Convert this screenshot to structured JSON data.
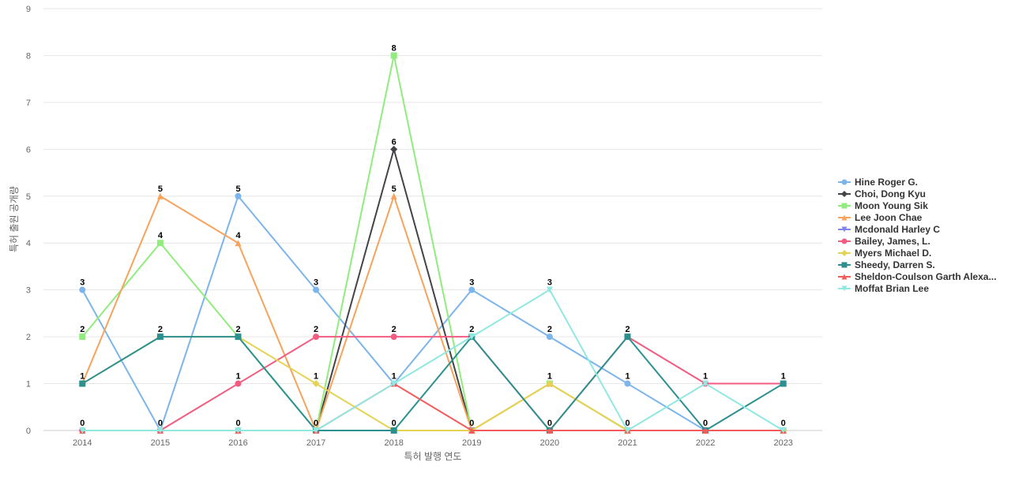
{
  "chart_data": {
    "type": "line",
    "title": "",
    "xlabel": "특허 발행 연도",
    "ylabel": "특허 출원 공개량",
    "ylim": [
      0,
      9
    ],
    "grid": true,
    "legend_position": "right",
    "categories": [
      "2014",
      "2015",
      "2016",
      "2017",
      "2018",
      "2019",
      "2020",
      "2021",
      "2022",
      "2023"
    ],
    "series": [
      {
        "name": "Hine Roger G.",
        "color": "#7cb5ec",
        "marker": "circle",
        "values": [
          3,
          0,
          5,
          3,
          1,
          3,
          2,
          1,
          0,
          0
        ]
      },
      {
        "name": "Choi, Dong Kyu",
        "color": "#434348",
        "marker": "diamond",
        "values": [
          0,
          0,
          0,
          0,
          6,
          0,
          0,
          0,
          0,
          0
        ]
      },
      {
        "name": "Moon Young Sik",
        "color": "#90ed7d",
        "marker": "square",
        "values": [
          2,
          4,
          2,
          0,
          8,
          0,
          1,
          0,
          0,
          0
        ]
      },
      {
        "name": "Lee Joon Chae",
        "color": "#f7a35c",
        "marker": "triangle",
        "values": [
          1,
          5,
          4,
          0,
          5,
          0,
          1,
          0,
          0,
          0
        ]
      },
      {
        "name": "Mcdonald Harley C",
        "color": "#8085e9",
        "marker": "triangle-down",
        "values": [
          0,
          0,
          0,
          0,
          0,
          0,
          0,
          0,
          0,
          0
        ]
      },
      {
        "name": "Bailey, James, L.",
        "color": "#f15c80",
        "marker": "circle",
        "values": [
          0,
          0,
          1,
          2,
          2,
          2,
          0,
          2,
          1,
          1
        ]
      },
      {
        "name": "Myers Michael D.",
        "color": "#e4d354",
        "marker": "diamond",
        "values": [
          1,
          2,
          2,
          1,
          0,
          0,
          1,
          0,
          0,
          0
        ]
      },
      {
        "name": "Sheedy, Darren S.",
        "color": "#2b908f",
        "marker": "square",
        "values": [
          1,
          2,
          2,
          0,
          0,
          2,
          0,
          2,
          0,
          1
        ]
      },
      {
        "name": "Sheldon-Coulson Garth Alexa...",
        "color": "#f45b5b",
        "marker": "triangle",
        "values": [
          0,
          0,
          0,
          0,
          1,
          0,
          0,
          0,
          0,
          0
        ]
      },
      {
        "name": "Moffat Brian Lee",
        "color": "#91e8e1",
        "marker": "triangle-down",
        "values": [
          0,
          0,
          0,
          0,
          1,
          2,
          3,
          0,
          1,
          0
        ]
      }
    ],
    "data_labels": [
      {
        "x": "2014",
        "y": 3,
        "text": "3"
      },
      {
        "x": "2014",
        "y": 2,
        "text": "2"
      },
      {
        "x": "2014",
        "y": 1,
        "text": "1"
      },
      {
        "x": "2014",
        "y": 0,
        "text": "0"
      },
      {
        "x": "2015",
        "y": 5,
        "text": "5"
      },
      {
        "x": "2015",
        "y": 4,
        "text": "4"
      },
      {
        "x": "2015",
        "y": 2,
        "text": "2"
      },
      {
        "x": "2015",
        "y": 0,
        "text": "0"
      },
      {
        "x": "2016",
        "y": 5,
        "text": "5"
      },
      {
        "x": "2016",
        "y": 4,
        "text": "4"
      },
      {
        "x": "2016",
        "y": 2,
        "text": "2"
      },
      {
        "x": "2016",
        "y": 1,
        "text": "1"
      },
      {
        "x": "2016",
        "y": 0,
        "text": "0"
      },
      {
        "x": "2017",
        "y": 3,
        "text": "3"
      },
      {
        "x": "2017",
        "y": 2,
        "text": "2"
      },
      {
        "x": "2017",
        "y": 1,
        "text": "1"
      },
      {
        "x": "2017",
        "y": 0,
        "text": "0"
      },
      {
        "x": "2018",
        "y": 8,
        "text": "8"
      },
      {
        "x": "2018",
        "y": 6,
        "text": "6"
      },
      {
        "x": "2018",
        "y": 5,
        "text": "5"
      },
      {
        "x": "2018",
        "y": 2,
        "text": "2"
      },
      {
        "x": "2018",
        "y": 1,
        "text": "1"
      },
      {
        "x": "2018",
        "y": 0,
        "text": "0"
      },
      {
        "x": "2019",
        "y": 3,
        "text": "3"
      },
      {
        "x": "2019",
        "y": 2,
        "text": "2"
      },
      {
        "x": "2019",
        "y": 0,
        "text": "0"
      },
      {
        "x": "2020",
        "y": 3,
        "text": "3"
      },
      {
        "x": "2020",
        "y": 2,
        "text": "2"
      },
      {
        "x": "2020",
        "y": 1,
        "text": "1"
      },
      {
        "x": "2020",
        "y": 0,
        "text": "0"
      },
      {
        "x": "2021",
        "y": 2,
        "text": "2"
      },
      {
        "x": "2021",
        "y": 1,
        "text": "1"
      },
      {
        "x": "2021",
        "y": 0,
        "text": "0"
      },
      {
        "x": "2022",
        "y": 1,
        "text": "1"
      },
      {
        "x": "2022",
        "y": 0,
        "text": "0"
      },
      {
        "x": "2023",
        "y": 1,
        "text": "1"
      },
      {
        "x": "2023",
        "y": 0,
        "text": "0"
      }
    ]
  }
}
